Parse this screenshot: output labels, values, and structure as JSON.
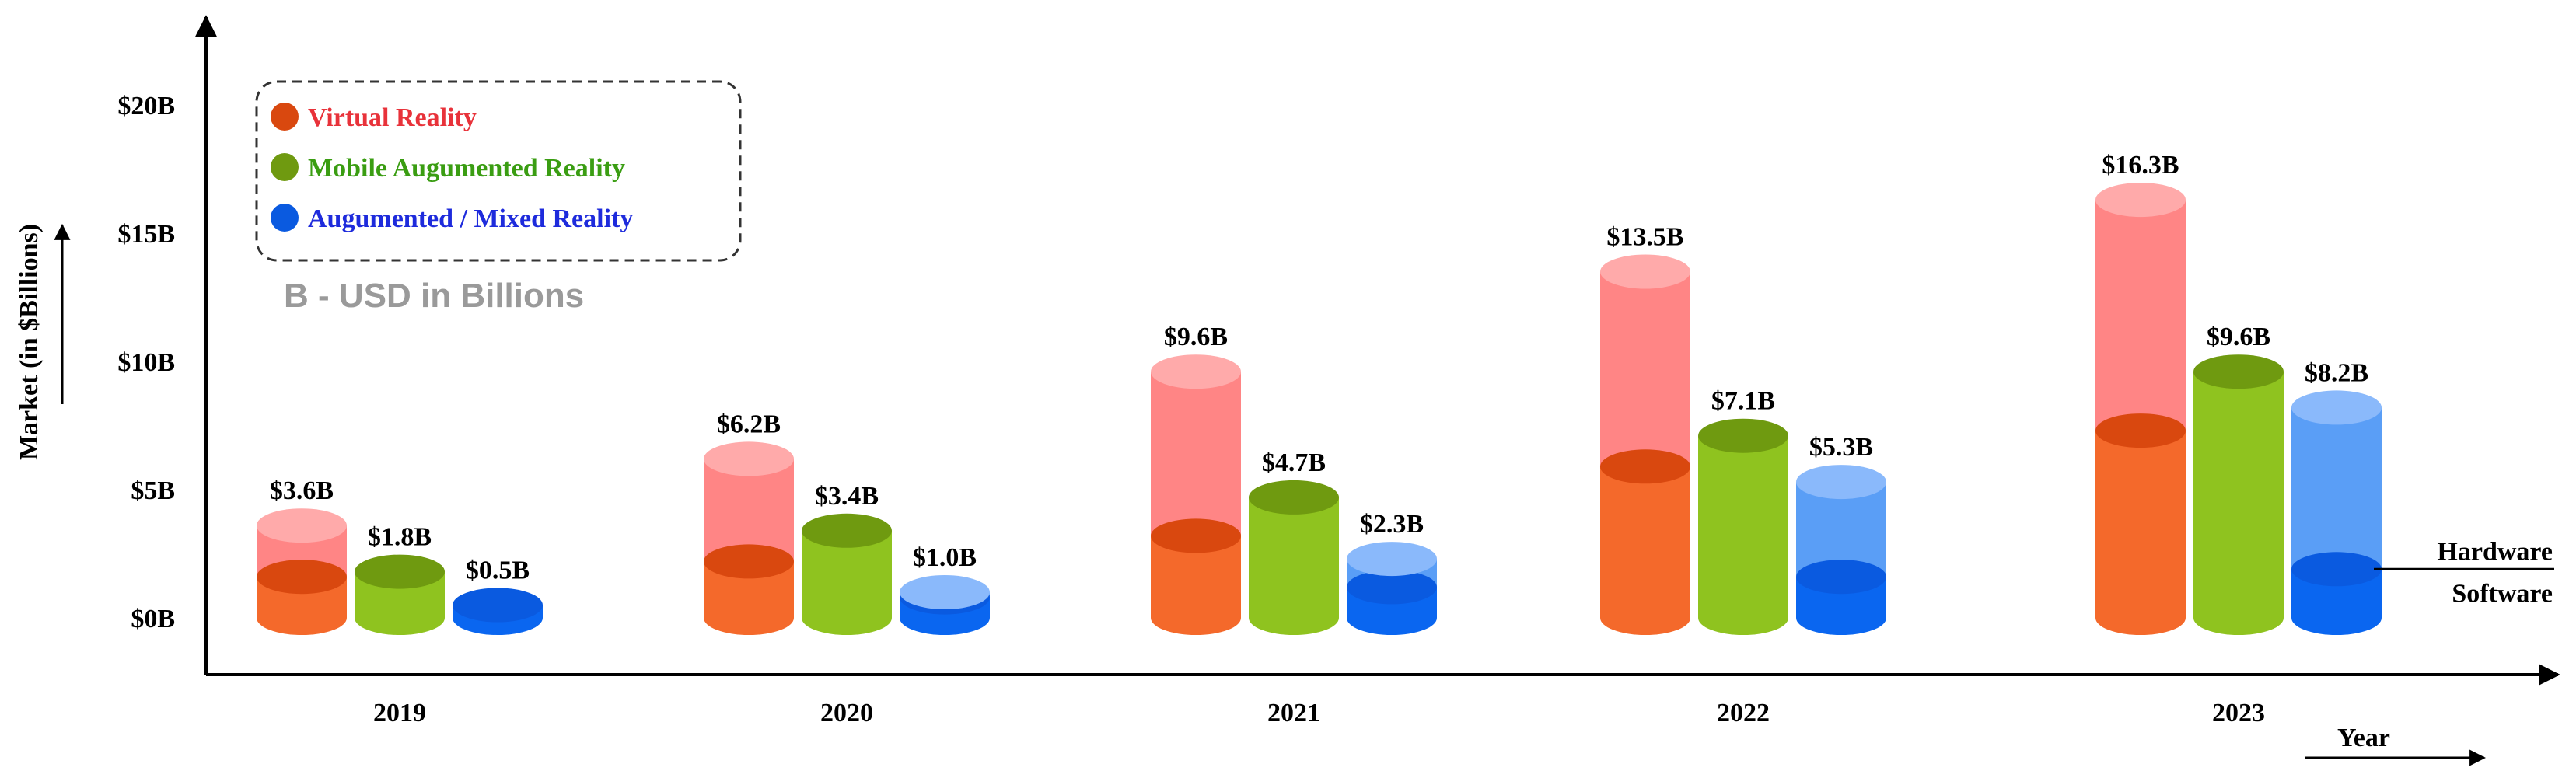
{
  "chart_data": {
    "type": "bar",
    "xlabel": "Year",
    "ylabel": "Market (in $Billions)",
    "note": "B - USD in Billions",
    "ylim": [
      0,
      20
    ],
    "y_ticks": [
      0,
      5,
      10,
      15,
      20
    ],
    "y_tick_labels": [
      "$0B",
      "$5B",
      "$10B",
      "$15B",
      "$20B"
    ],
    "categories": [
      "2019",
      "2020",
      "2021",
      "2022",
      "2023"
    ],
    "legend_position": "top-left",
    "layer_labels": {
      "top": "Hardware",
      "bottom": "Software"
    },
    "series": [
      {
        "name": "Virtual Reality",
        "color": "#e8323a",
        "values": [
          3.6,
          6.2,
          9.6,
          13.5,
          16.3
        ],
        "labels": [
          "$3.6B",
          "$6.2B",
          "$9.6B",
          "$13.5B",
          "$16.3B"
        ],
        "software": [
          1.6,
          2.2,
          3.2,
          5.9,
          7.3
        ],
        "colors": {
          "hardware": "#ff8585",
          "hardware_cap": "#ffaaaa",
          "software": "#f4692b",
          "software_cap": "#d9480f"
        }
      },
      {
        "name": "Mobile Augumented Reality",
        "color": "#3a9d12",
        "values": [
          1.8,
          3.4,
          4.7,
          7.1,
          9.6
        ],
        "labels": [
          "$1.8B",
          "$3.4B",
          "$4.7B",
          "$7.1B",
          "$9.6B"
        ],
        "software": [
          1.8,
          3.4,
          4.7,
          7.1,
          9.6
        ],
        "colors": {
          "hardware": "#8fc31f",
          "hardware_cap": "#6f9a10",
          "software": "#8fc31f",
          "software_cap": "#6f9a10"
        }
      },
      {
        "name": "Augumented / Mixed Reality",
        "color": "#1e2bdc",
        "values": [
          0.5,
          1.0,
          2.3,
          5.3,
          8.2
        ],
        "labels": [
          "$0.5B",
          "$1.0B",
          "$2.3B",
          "$5.3B",
          "$8.2B"
        ],
        "software": [
          0.5,
          0.8,
          1.2,
          1.6,
          1.9
        ],
        "colors": {
          "hardware": "#5a9ef6",
          "hardware_cap": "#8ab9fb",
          "software": "#0a66f0",
          "software_cap": "#0a5ae0"
        }
      }
    ]
  }
}
